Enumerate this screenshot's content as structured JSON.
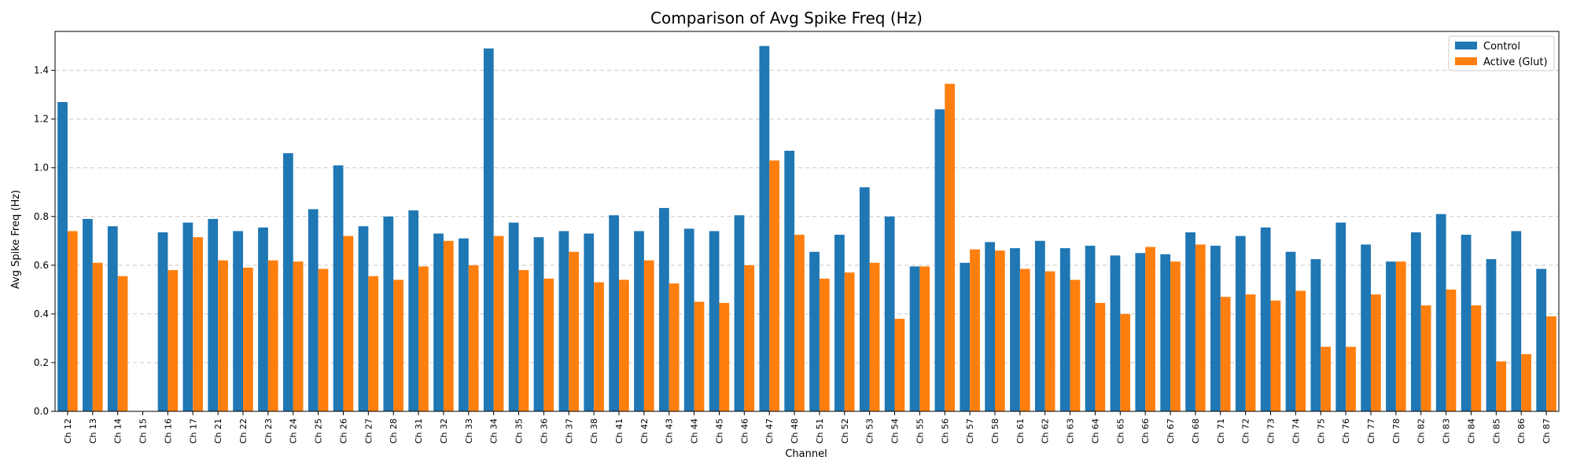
{
  "chart_data": {
    "type": "bar",
    "title": "Comparison of Avg Spike Freq (Hz)",
    "xlabel": "Channel",
    "ylabel": "Avg Spike Freq (Hz)",
    "ylim": [
      0,
      1.56
    ],
    "yticks": [
      "0.0",
      "0.2",
      "0.4",
      "0.6",
      "0.8",
      "1.0",
      "1.2",
      "1.4"
    ],
    "grid": "y-dashed",
    "legend_position": "top-right",
    "categories": [
      "Ch 12",
      "Ch 13",
      "Ch 14",
      "Ch 15",
      "Ch 16",
      "Ch 17",
      "Ch 21",
      "Ch 22",
      "Ch 23",
      "Ch 24",
      "Ch 25",
      "Ch 26",
      "Ch 27",
      "Ch 28",
      "Ch 31",
      "Ch 32",
      "Ch 33",
      "Ch 34",
      "Ch 35",
      "Ch 36",
      "Ch 37",
      "Ch 38",
      "Ch 41",
      "Ch 42",
      "Ch 43",
      "Ch 44",
      "Ch 45",
      "Ch 46",
      "Ch 47",
      "Ch 48",
      "Ch 51",
      "Ch 52",
      "Ch 53",
      "Ch 54",
      "Ch 55",
      "Ch 56",
      "Ch 57",
      "Ch 58",
      "Ch 61",
      "Ch 62",
      "Ch 63",
      "Ch 64",
      "Ch 65",
      "Ch 66",
      "Ch 67",
      "Ch 68",
      "Ch 71",
      "Ch 72",
      "Ch 73",
      "Ch 74",
      "Ch 75",
      "Ch 76",
      "Ch 77",
      "Ch 78",
      "Ch 82",
      "Ch 83",
      "Ch 84",
      "Ch 85",
      "Ch 86",
      "Ch 87"
    ],
    "series": [
      {
        "name": "Control",
        "color": "#1f77b4",
        "values": [
          1.27,
          0.79,
          0.76,
          0.0,
          0.735,
          0.775,
          0.79,
          0.74,
          0.755,
          1.06,
          0.83,
          1.01,
          0.76,
          0.8,
          0.825,
          0.73,
          0.71,
          1.49,
          0.775,
          0.715,
          0.74,
          0.73,
          0.805,
          0.74,
          0.835,
          0.75,
          0.74,
          0.805,
          1.5,
          1.07,
          0.655,
          0.725,
          0.92,
          0.8,
          0.595,
          1.24,
          0.61,
          0.695,
          0.67,
          0.7,
          0.67,
          0.68,
          0.64,
          0.65,
          0.645,
          0.735,
          0.68,
          0.72,
          0.755,
          0.655,
          0.625,
          0.775,
          0.685,
          0.615,
          0.735,
          0.81,
          0.725,
          0.625,
          0.74,
          0.585
        ]
      },
      {
        "name": "Active (Glut)",
        "color": "#ff7f0e",
        "values": [
          0.74,
          0.61,
          0.555,
          0.0,
          0.58,
          0.715,
          0.62,
          0.59,
          0.62,
          0.615,
          0.585,
          0.72,
          0.555,
          0.54,
          0.595,
          0.7,
          0.6,
          0.72,
          0.58,
          0.545,
          0.655,
          0.53,
          0.54,
          0.62,
          0.525,
          0.45,
          0.445,
          0.6,
          1.03,
          0.725,
          0.545,
          0.57,
          0.61,
          0.38,
          0.595,
          1.345,
          0.665,
          0.66,
          0.585,
          0.575,
          0.54,
          0.445,
          0.4,
          0.675,
          0.615,
          0.685,
          0.47,
          0.48,
          0.455,
          0.495,
          0.265,
          0.265,
          0.48,
          0.615,
          0.435,
          0.5,
          0.435,
          0.205,
          0.235,
          0.39
        ]
      }
    ]
  }
}
